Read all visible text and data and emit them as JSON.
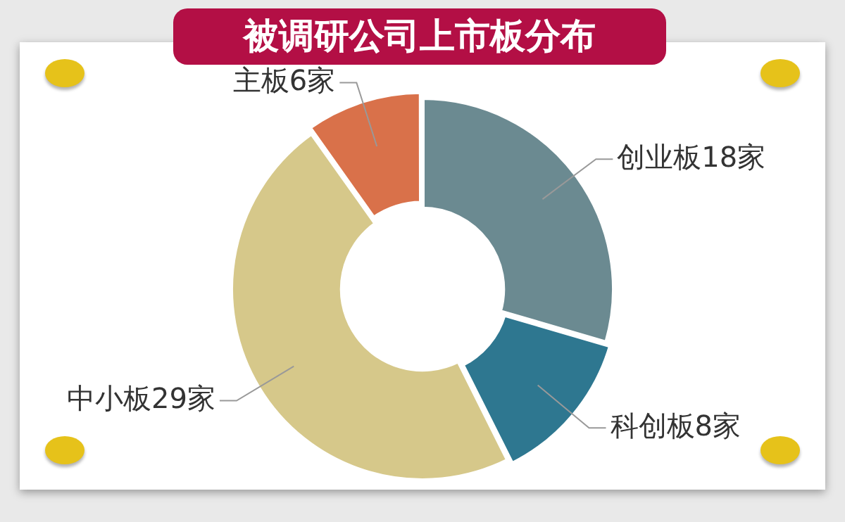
{
  "chart_data": {
    "type": "donut",
    "title": "被调研公司上市板分布",
    "categories": [
      "创业板",
      "科创板",
      "中小板",
      "主板"
    ],
    "values": [
      18,
      8,
      29,
      6
    ],
    "value_labels": [
      "18家",
      "8家",
      "29家",
      "6家"
    ],
    "colors": [
      "#6b8a91",
      "#2e7790",
      "#d6c88a",
      "#d9714a"
    ],
    "legend": false
  }
}
